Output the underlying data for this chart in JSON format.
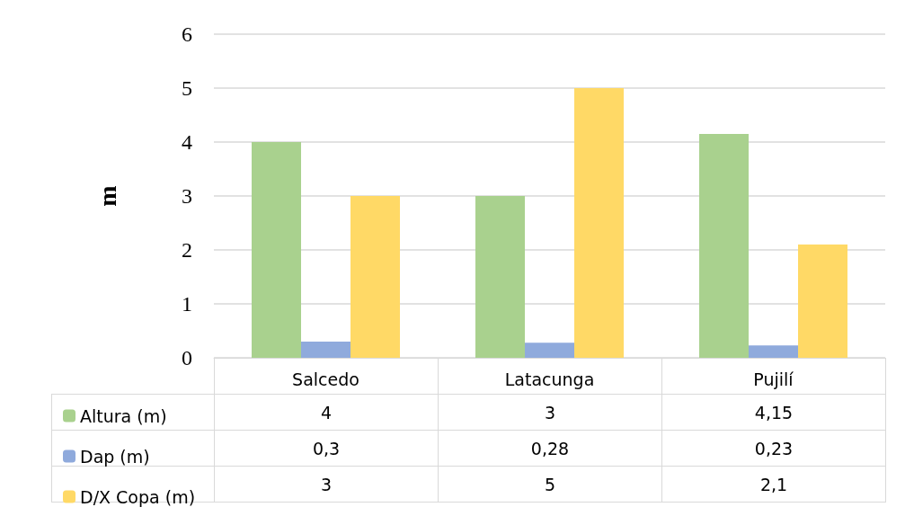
{
  "chart_data": {
    "type": "bar",
    "ylabel": "m",
    "categories": [
      "Salcedo",
      "Latacunga",
      "Pujilí"
    ],
    "series": [
      {
        "name": "Altura (m)",
        "color": "#a9d18e",
        "values": [
          4,
          3,
          4.15
        ],
        "value_labels": [
          "4",
          "3",
          "4,15"
        ]
      },
      {
        "name": "Dap (m)",
        "color": "#8faadc",
        "values": [
          0.3,
          0.28,
          0.23
        ],
        "value_labels": [
          "0,3",
          "0,28",
          "0,23"
        ]
      },
      {
        "name": "D/X Copa (m)",
        "color": "#ffd966",
        "values": [
          3,
          5,
          2.1
        ],
        "value_labels": [
          "3",
          "5",
          "2,1"
        ]
      }
    ],
    "ylim": [
      0,
      6
    ],
    "yticks": [
      0,
      1,
      2,
      3,
      4,
      5,
      6
    ],
    "grid": "y",
    "legend": "bottom left"
  }
}
